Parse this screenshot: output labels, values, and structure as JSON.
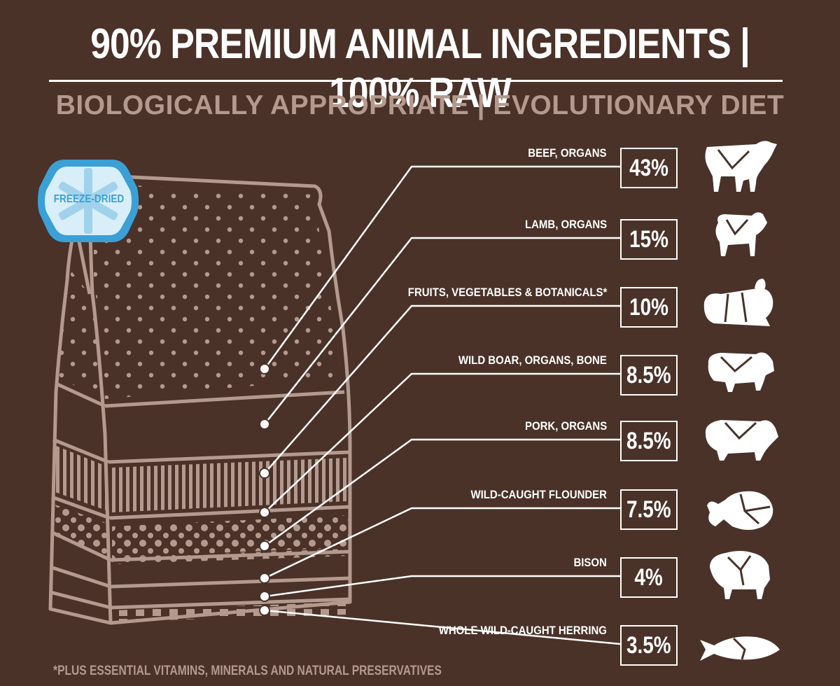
{
  "header": {
    "headline": "90% PREMIUM ANIMAL INGREDIENTS | 100% RAW",
    "subhead": "BIOLOGICALLY APPROPRIATE | EVOLUTIONARY DIET"
  },
  "badge": {
    "label": "FREEZE-DRIED"
  },
  "ingredients": [
    {
      "label": "BEEF, ORGANS",
      "percent": "43%",
      "icon": "cow-icon"
    },
    {
      "label": "LAMB, ORGANS",
      "percent": "15%",
      "icon": "lamb-icon"
    },
    {
      "label": "FRUITS, VEGETABLES & BOTANICALS*",
      "percent": "10%",
      "icon": "produce-icon"
    },
    {
      "label": "WILD BOAR, ORGANS, BONE",
      "percent": "8.5%",
      "icon": "boar-icon"
    },
    {
      "label": "PORK, ORGANS",
      "percent": "8.5%",
      "icon": "pig-icon"
    },
    {
      "label": "WILD-CAUGHT FLOUNDER",
      "percent": "7.5%",
      "icon": "flounder-icon"
    },
    {
      "label": "BISON",
      "percent": "4%",
      "icon": "bison-icon"
    },
    {
      "label": "WHOLE WILD-CAUGHT HERRING",
      "percent": "3.5%",
      "icon": "herring-icon"
    }
  ],
  "footnote": "*PLUS ESSENTIAL VITAMINS, MINERALS AND NATURAL PRESERVATIVES",
  "colors": {
    "background": "#4a3229",
    "accent_tan": "#b49a8e",
    "badge_blue": "#3aa0d6",
    "white": "#ffffff"
  }
}
